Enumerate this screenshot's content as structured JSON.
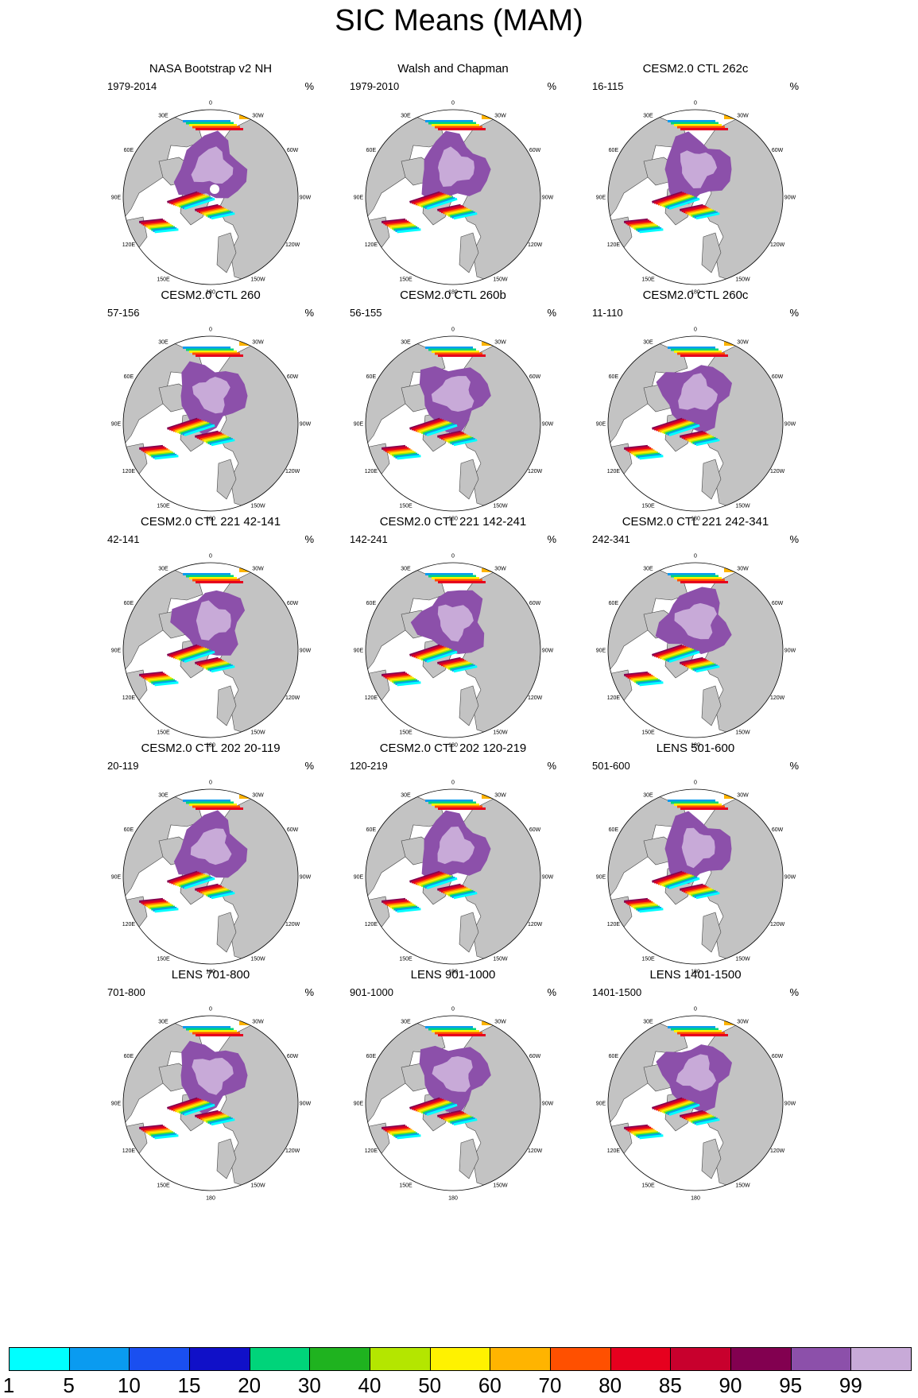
{
  "title": "SIC Means (MAM)",
  "unit_label": "%",
  "lon_labels": [
    "180",
    "150E",
    "120E",
    "90E",
    "60E",
    "30E",
    "0",
    "30W",
    "60W",
    "90W",
    "120W",
    "150W"
  ],
  "panels": [
    {
      "title": "NASA Bootstrap v2 NH",
      "period": "1979-2014",
      "pole_hole": true
    },
    {
      "title": "Walsh and Chapman",
      "period": "1979-2010"
    },
    {
      "title": "CESM2.0 CTL 262c",
      "period": "16-115"
    },
    {
      "title": "CESM2.0 CTL 260",
      "period": "57-156"
    },
    {
      "title": "CESM2.0 CTL 260b",
      "period": "56-155"
    },
    {
      "title": "CESM2.0 CTL 260c",
      "period": "11-110"
    },
    {
      "title": "CESM2.0 CTL 221 42-141",
      "period": "42-141"
    },
    {
      "title": "CESM2.0 CTL 221 142-241",
      "period": "142-241"
    },
    {
      "title": "CESM2.0 CTL 221 242-341",
      "period": "242-341"
    },
    {
      "title": "CESM2.0 CTL 202 20-119",
      "period": "20-119"
    },
    {
      "title": "CESM2.0 CTL 202 120-219",
      "period": "120-219"
    },
    {
      "title": "LENS 501-600",
      "period": "501-600"
    },
    {
      "title": "LENS 701-800",
      "period": "701-800"
    },
    {
      "title": "LENS 901-1000",
      "period": "901-1000"
    },
    {
      "title": "LENS 1401-1500",
      "period": "1401-1500"
    }
  ],
  "colorbar": {
    "labels": [
      "1",
      "5",
      "10",
      "15",
      "20",
      "30",
      "40",
      "50",
      "60",
      "70",
      "80",
      "85",
      "90",
      "95",
      "99"
    ],
    "colors": [
      "#00ffff",
      "#0a9bf0",
      "#1a4ff0",
      "#1010c8",
      "#00d47a",
      "#1fb31f",
      "#b4e600",
      "#fff200",
      "#ffb400",
      "#ff5000",
      "#e6001e",
      "#c8002d",
      "#820050",
      "#8c50aa",
      "#c8aad8"
    ]
  },
  "colors": {
    "land": "#c3c3c3",
    "ocean": "#ffffff",
    "ice_99": "#c8aad8",
    "ice_95": "#8c50aa"
  }
}
